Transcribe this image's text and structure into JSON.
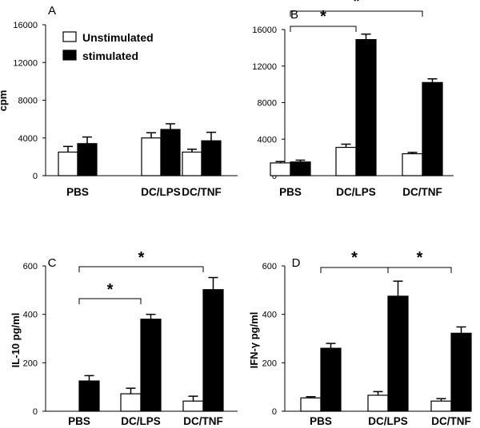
{
  "legend": {
    "unstimulated": "Unstimulated",
    "stimulated": "stimulated"
  },
  "chart_data": [
    {
      "type": "bar",
      "panel_label": "A",
      "ylabel": "cpm",
      "ylim": [
        0,
        16000
      ],
      "yticks": [
        "0",
        "4000",
        "8000",
        "12000",
        "16000"
      ],
      "categories": [
        "PBS",
        "DC/LPS",
        "DC/TNF"
      ],
      "series": [
        {
          "name": "Unstimulated",
          "values": [
            2500,
            4000,
            2500
          ],
          "errors": [
            600,
            550,
            300
          ]
        },
        {
          "name": "stimulated",
          "values": [
            3400,
            4900,
            3700
          ],
          "errors": [
            700,
            600,
            900
          ]
        }
      ],
      "significance": []
    },
    {
      "type": "bar",
      "panel_label": "B",
      "ylabel": "",
      "ylim": [
        0,
        16000
      ],
      "yticks": [
        "0",
        "4000",
        "8000",
        "12000",
        "16000"
      ],
      "categories": [
        "PBS",
        "DC/LPS",
        "DC/TNF"
      ],
      "series": [
        {
          "name": "Unstimulated",
          "values": [
            1400,
            3100,
            2400
          ],
          "errors": [
            150,
            350,
            150
          ]
        },
        {
          "name": "stimulated",
          "values": [
            1500,
            14900,
            10200
          ],
          "errors": [
            200,
            600,
            400
          ]
        }
      ],
      "significance": [
        {
          "from": 0,
          "to": 1,
          "label": "*"
        },
        {
          "from": 0,
          "to": 2,
          "label": "*"
        }
      ]
    },
    {
      "type": "bar",
      "panel_label": "C",
      "ylabel": "IL-10 pg/ml",
      "ylim": [
        0,
        600
      ],
      "yticks": [
        "0",
        "200",
        "400",
        "600"
      ],
      "categories": [
        "PBS",
        "DC/LPS",
        "DC/TNF"
      ],
      "series": [
        {
          "name": "Unstimulated",
          "values": [
            0,
            72,
            42
          ],
          "errors": [
            0,
            23,
            20
          ]
        },
        {
          "name": "stimulated",
          "values": [
            125,
            380,
            502
          ],
          "errors": [
            22,
            20,
            50
          ]
        }
      ],
      "significance": [
        {
          "from": 0,
          "to": 1,
          "label": "*"
        },
        {
          "from": 0,
          "to": 2,
          "label": "*"
        }
      ]
    },
    {
      "type": "bar",
      "panel_label": "D",
      "ylabel": "IFN-γ pg/ml",
      "ylim": [
        0,
        600
      ],
      "yticks": [
        "0",
        "200",
        "400",
        "600"
      ],
      "categories": [
        "PBS",
        "DC/LPS",
        "DC/TNF"
      ],
      "series": [
        {
          "name": "Unstimulated",
          "values": [
            55,
            66,
            42
          ],
          "errors": [
            5,
            15,
            10
          ]
        },
        {
          "name": "stimulated",
          "values": [
            260,
            475,
            322
          ],
          "errors": [
            20,
            62,
            26
          ]
        }
      ],
      "significance": [
        {
          "from": 0,
          "to": 1,
          "label": "*"
        },
        {
          "from": 1,
          "to": 2,
          "label": "*"
        }
      ]
    }
  ]
}
